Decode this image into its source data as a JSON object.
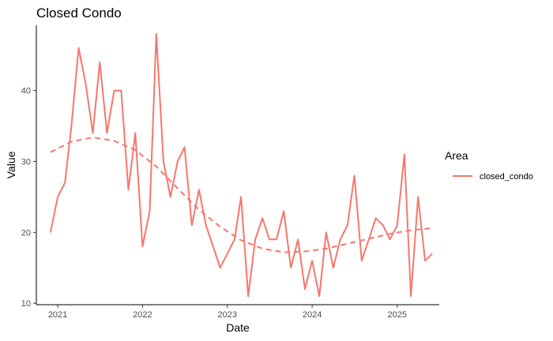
{
  "chart_data": {
    "type": "line",
    "title": "Closed Condo",
    "xlabel": "Date",
    "ylabel": "Value",
    "xlim": [
      "2020-10-01",
      "2025-07-01"
    ],
    "ylim": [
      9.8,
      49.2
    ],
    "x_ticks": [
      "2021",
      "2022",
      "2023",
      "2024",
      "2025"
    ],
    "y_ticks": [
      10,
      20,
      30,
      40
    ],
    "grid": false,
    "legend": {
      "title": "Area",
      "position": "right"
    },
    "series": [
      {
        "name": "closed_condo",
        "color": "#F8766D",
        "x": [
          "2020-12-01",
          "2021-01-01",
          "2021-02-01",
          "2021-03-01",
          "2021-04-01",
          "2021-05-01",
          "2021-06-01",
          "2021-07-01",
          "2021-08-01",
          "2021-09-01",
          "2021-10-01",
          "2021-11-01",
          "2021-12-01",
          "2022-01-01",
          "2022-02-01",
          "2022-03-01",
          "2022-04-01",
          "2022-05-01",
          "2022-06-01",
          "2022-07-01",
          "2022-08-01",
          "2022-09-01",
          "2022-10-01",
          "2022-11-01",
          "2022-12-01",
          "2023-01-01",
          "2023-02-01",
          "2023-03-01",
          "2023-04-01",
          "2023-05-01",
          "2023-06-01",
          "2023-07-01",
          "2023-08-01",
          "2023-09-01",
          "2023-10-01",
          "2023-11-01",
          "2023-12-01",
          "2024-01-01",
          "2024-02-01",
          "2024-03-01",
          "2024-04-01",
          "2024-05-01",
          "2024-06-01",
          "2024-07-01",
          "2024-08-01",
          "2024-09-01",
          "2024-10-01",
          "2024-11-01",
          "2024-12-01",
          "2025-01-01",
          "2025-02-01",
          "2025-03-01",
          "2025-04-01",
          "2025-05-01",
          "2025-06-01"
        ],
        "values": [
          20,
          25,
          27,
          35,
          46,
          41,
          34,
          44,
          34,
          40,
          40,
          26,
          34,
          18,
          23,
          48,
          30,
          25,
          30,
          32,
          21,
          26,
          21,
          18,
          15,
          17,
          19,
          25,
          11,
          19,
          22,
          19,
          19,
          23,
          15,
          19,
          12,
          16,
          11,
          20,
          15,
          19,
          21,
          28,
          16,
          19,
          22,
          21,
          19,
          21,
          31,
          11,
          25,
          16,
          17
        ]
      }
    ],
    "trend": {
      "name": "closed_condo",
      "style": "dashed",
      "x": [
        "2020-12-01",
        "2021-03-01",
        "2021-06-01",
        "2021-09-01",
        "2021-12-01",
        "2022-03-01",
        "2022-06-01",
        "2022-09-01",
        "2022-12-01",
        "2023-03-01",
        "2023-06-01",
        "2023-09-01",
        "2023-12-01",
        "2024-03-01",
        "2024-06-01",
        "2024-09-01",
        "2024-12-01",
        "2025-03-01",
        "2025-06-01"
      ],
      "values": [
        31.3,
        32.8,
        33.4,
        32.9,
        31.6,
        29.3,
        26.2,
        23.2,
        20.8,
        18.9,
        17.7,
        17.2,
        17.3,
        17.7,
        18.4,
        19.1,
        19.8,
        20.3,
        20.6
      ]
    }
  }
}
